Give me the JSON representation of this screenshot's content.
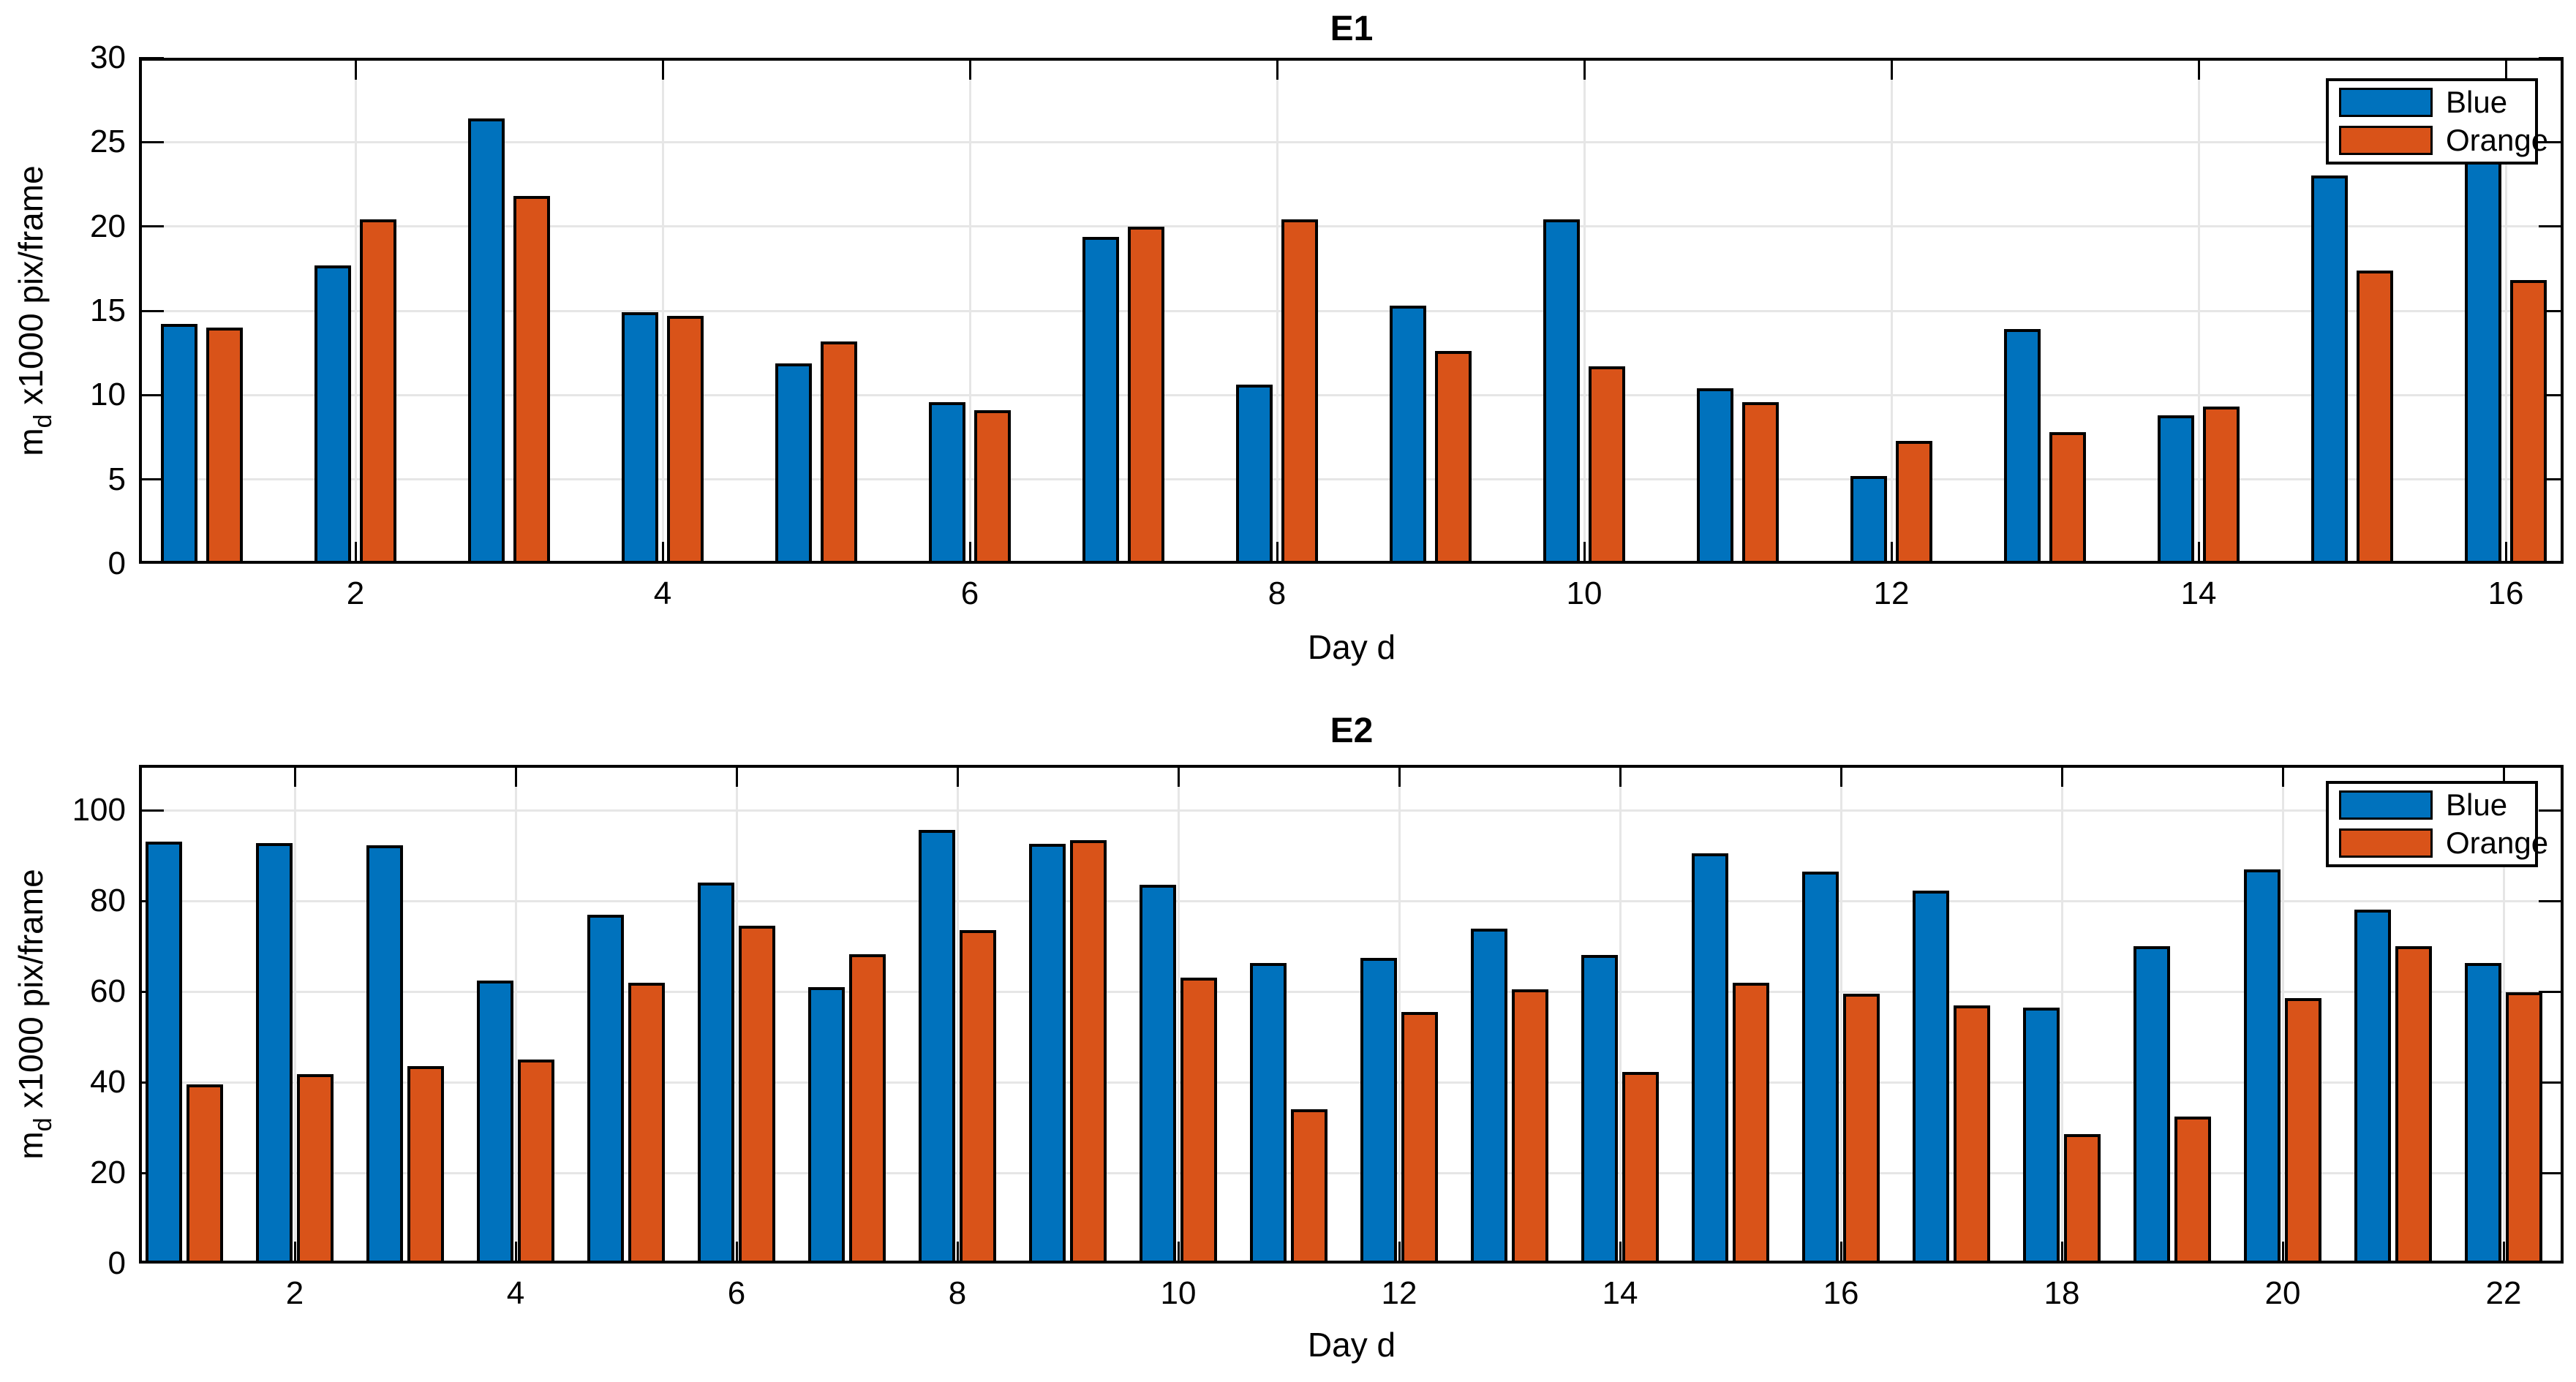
{
  "figure": {
    "background": "#FFFFFF"
  },
  "colors": {
    "blue": "#0072BD",
    "orange": "#D95319",
    "grid": "#E6E6E6",
    "axis": "#000000"
  },
  "chart_data": [
    {
      "id": "E1",
      "type": "bar",
      "title": "E1",
      "xlabel": "Day d",
      "ylabel": {
        "prefix": "m",
        "sub": "d",
        "suffix": " x1000 pix/frame"
      },
      "x": [
        1,
        2,
        3,
        4,
        5,
        6,
        7,
        8,
        9,
        10,
        11,
        12,
        13,
        14,
        15,
        16
      ],
      "series": [
        {
          "name": "Blue",
          "color_key": "blue",
          "values": [
            14.2,
            17.7,
            26.4,
            14.9,
            11.9,
            9.6,
            19.4,
            10.6,
            15.3,
            20.4,
            10.4,
            5.2,
            13.9,
            8.8,
            23.0,
            24.0
          ]
        },
        {
          "name": "Orange",
          "color_key": "orange",
          "values": [
            14.0,
            20.4,
            21.8,
            14.7,
            13.2,
            9.1,
            20.0,
            20.4,
            12.6,
            11.7,
            9.6,
            7.3,
            7.8,
            9.3,
            17.4,
            16.8
          ]
        }
      ],
      "ylim": [
        0,
        30
      ],
      "yticks": [
        0,
        5,
        10,
        15,
        20,
        25,
        30
      ],
      "xticks": [
        2,
        4,
        6,
        8,
        10,
        12,
        14,
        16
      ],
      "grid": true,
      "legend": {
        "position": "top-right",
        "entries": [
          "Blue",
          "Orange"
        ]
      }
    },
    {
      "id": "E2",
      "type": "bar",
      "title": "E2",
      "xlabel": "Day d",
      "ylabel": {
        "prefix": "m",
        "sub": "d",
        "suffix": " x1000 pix/frame"
      },
      "x": [
        1,
        2,
        3,
        4,
        5,
        6,
        7,
        8,
        9,
        10,
        11,
        12,
        13,
        14,
        15,
        16,
        17,
        18,
        19,
        20,
        21,
        22
      ],
      "series": [
        {
          "name": "Blue",
          "color_key": "blue",
          "values": [
            93.0,
            92.7,
            92.3,
            62.5,
            77.0,
            84.0,
            61.0,
            95.6,
            92.6,
            83.5,
            66.3,
            67.5,
            73.8,
            68.0,
            90.5,
            86.4,
            82.3,
            56.5,
            70.0,
            87.0,
            78.0,
            66.3
          ]
        },
        {
          "name": "Orange",
          "color_key": "orange",
          "values": [
            39.5,
            41.7,
            43.6,
            45.0,
            62.0,
            74.5,
            68.2,
            73.5,
            93.4,
            63.0,
            34.0,
            55.5,
            60.5,
            42.3,
            62.0,
            59.5,
            57.0,
            28.5,
            32.5,
            58.5,
            70.0,
            59.8
          ]
        }
      ],
      "ylim": [
        0,
        110
      ],
      "yticks": [
        0,
        20,
        40,
        60,
        80,
        100
      ],
      "xticks": [
        2,
        4,
        6,
        8,
        10,
        12,
        14,
        16,
        18,
        20,
        22
      ],
      "grid": true,
      "legend": {
        "position": "top-right",
        "entries": [
          "Blue",
          "Orange"
        ]
      }
    }
  ]
}
